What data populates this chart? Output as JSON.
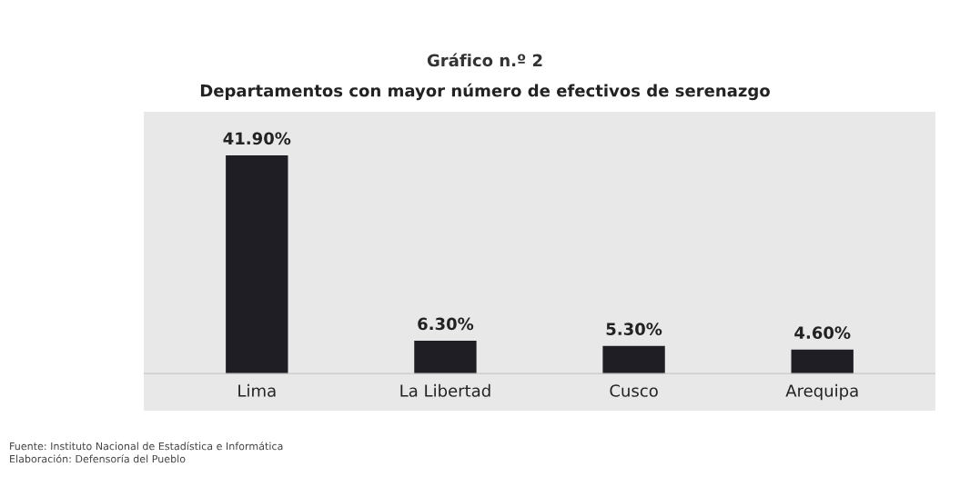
{
  "chart_data": {
    "type": "bar",
    "title": "Gráfico n.º 2",
    "subtitle": "Departamentos con mayor número de efectivos de serenazgo",
    "categories": [
      "Lima",
      "La Libertad",
      "Cusco",
      "Arequipa"
    ],
    "values": [
      41.9,
      6.3,
      5.3,
      4.6
    ],
    "value_labels": [
      "41.90%",
      "6.30%",
      "5.30%",
      "4.60%"
    ],
    "color": "#1e1e24",
    "annotations": [
      "Fuente: Instituto Nacional de Estadística e Informática",
      "Elaboración: Defensoría del Pueblo"
    ]
  }
}
